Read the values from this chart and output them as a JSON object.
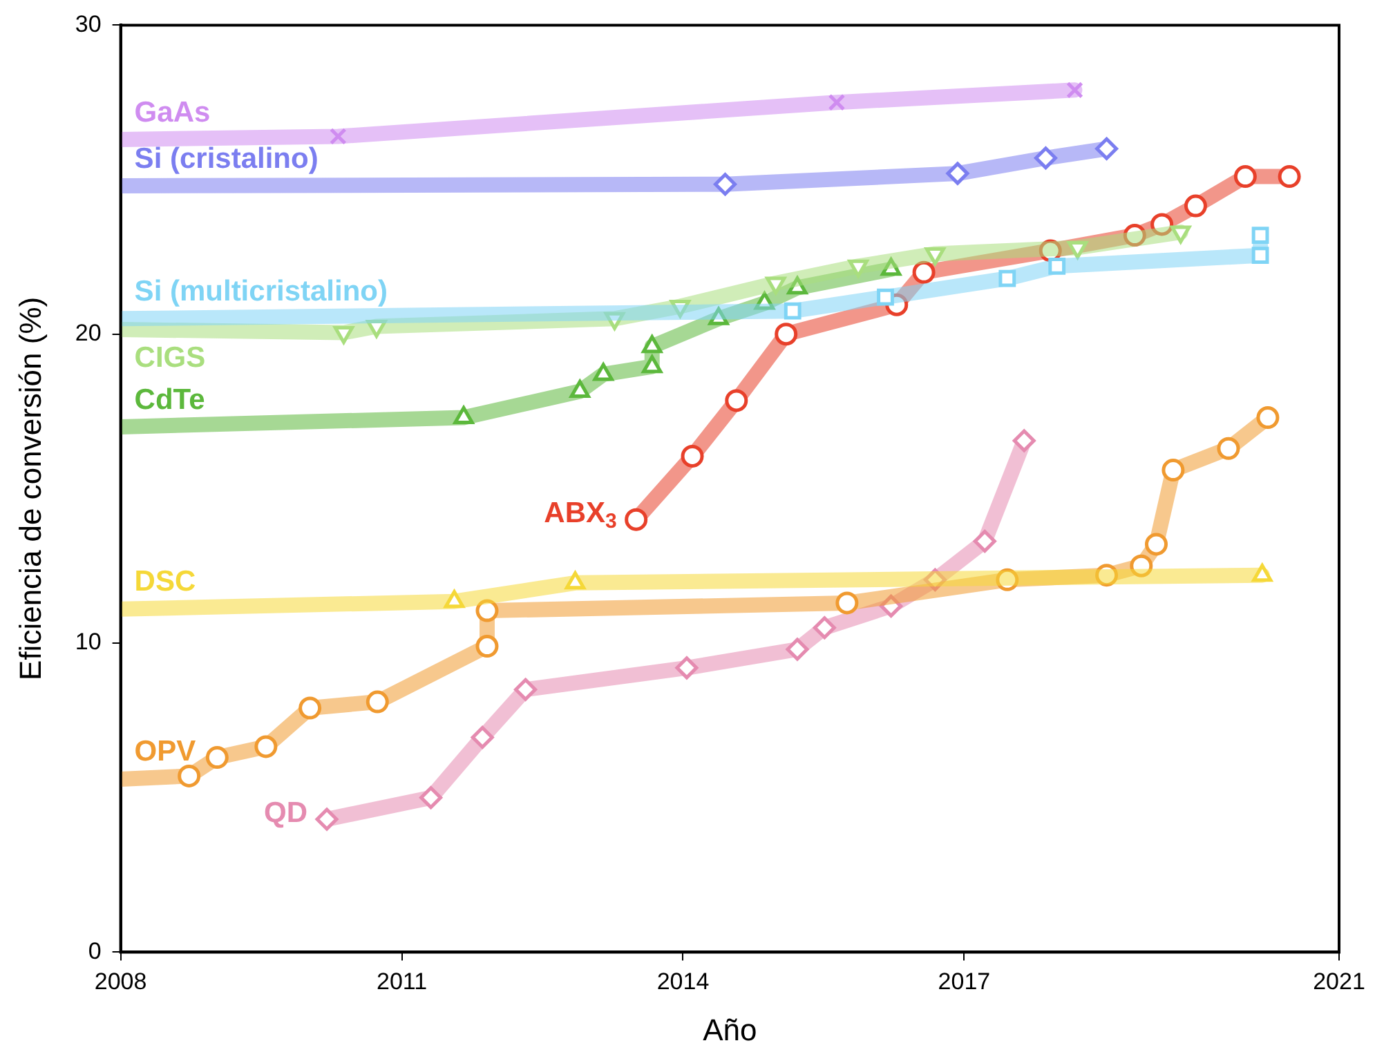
{
  "chart_data": {
    "type": "line",
    "xlabel": "Año",
    "ylabel": "Eficiencia de conversión (%)",
    "xlim": [
      2008,
      2021
    ],
    "xticks": [
      2008,
      2011,
      2014,
      2017,
      2021
    ],
    "ylim": [
      0,
      30
    ],
    "yticks": [
      0,
      10,
      20,
      30
    ],
    "grid": false,
    "legend": false,
    "series": [
      {
        "name": "GaAs",
        "color": "#cf8cf0",
        "marker": "cross",
        "x": [
          2008,
          2010.32,
          2015.64,
          2018.18
        ],
        "values": [
          26.3,
          26.4,
          27.5,
          27.9
        ]
      },
      {
        "name": "Si (cristalino)",
        "color": "#7b7ef0",
        "marker": "diamond",
        "x": [
          2008,
          2014.45,
          2016.93,
          2017.87,
          2018.52
        ],
        "values": [
          24.8,
          24.85,
          25.2,
          25.7,
          26.0
        ]
      },
      {
        "name": "Si (multicristalino)",
        "color": "#7fd4f5",
        "marker": "square",
        "x": [
          2008,
          2015.17,
          2016.16,
          2017.46,
          2017.99,
          2020.16,
          2020.16
        ],
        "values": [
          20.5,
          20.75,
          21.2,
          21.8,
          22.2,
          22.55,
          23.2
        ]
      },
      {
        "name": "CIGS",
        "color": "#a9de7e",
        "marker": "triangle-down",
        "x": [
          2008,
          2010.38,
          2010.73,
          2013.27,
          2013.97,
          2014.99,
          2015.87,
          2016.69,
          2018.21,
          2019.31
        ],
        "values": [
          20.15,
          20.05,
          20.25,
          20.5,
          20.9,
          21.65,
          22.2,
          22.6,
          22.8,
          23.3
        ]
      },
      {
        "name": "CdTe",
        "color": "#5cb83c",
        "marker": "triangle",
        "x": [
          2008,
          2011.66,
          2012.9,
          2013.15,
          2013.67,
          2013.67,
          2014.38,
          2014.87,
          2015.22,
          2016.22
        ],
        "values": [
          17.0,
          17.3,
          18.15,
          18.7,
          18.95,
          19.6,
          20.5,
          21.0,
          21.5,
          22.1
        ]
      },
      {
        "name": "ABX$_{3}$",
        "color": "#e8402a",
        "marker": "circle",
        "x": [
          2013.5,
          2014.1,
          2014.57,
          2015.1,
          2016.28,
          2016.57,
          2017.92,
          2018.82,
          2019.11,
          2019.47,
          2020.0,
          2020.47
        ],
        "values": [
          14.0,
          16.05,
          17.85,
          20.0,
          20.95,
          22.0,
          22.7,
          23.2,
          23.55,
          24.15,
          25.1,
          25.1
        ]
      },
      {
        "name": "DSC",
        "color": "#f5d838",
        "marker": "triangle",
        "x": [
          2008,
          2011.56,
          2012.85,
          2020.18
        ],
        "values": [
          11.1,
          11.35,
          11.95,
          12.2
        ]
      },
      {
        "name": "OPV",
        "color": "#f09a30",
        "marker": "circle",
        "x": [
          2008,
          2008.73,
          2009.03,
          2009.55,
          2010.02,
          2010.74,
          2011.91,
          2011.91,
          2015.75,
          2017.46,
          2018.52,
          2018.89,
          2019.05,
          2019.23,
          2019.82,
          2020.24
        ],
        "values": [
          5.6,
          5.7,
          6.3,
          6.65,
          7.9,
          8.1,
          9.9,
          11.05,
          11.3,
          12.05,
          12.2,
          12.5,
          13.2,
          15.6,
          16.3,
          17.3
        ]
      },
      {
        "name": "QD",
        "color": "#e58bb0",
        "marker": "diamond",
        "x": [
          2010.2,
          2011.31,
          2011.86,
          2012.32,
          2014.04,
          2015.22,
          2015.51,
          2016.22,
          2016.69,
          2017.22,
          2017.64
        ],
        "values": [
          4.3,
          5.0,
          6.95,
          8.5,
          9.2,
          9.8,
          10.5,
          11.2,
          12.05,
          13.3,
          16.55
        ]
      }
    ]
  }
}
